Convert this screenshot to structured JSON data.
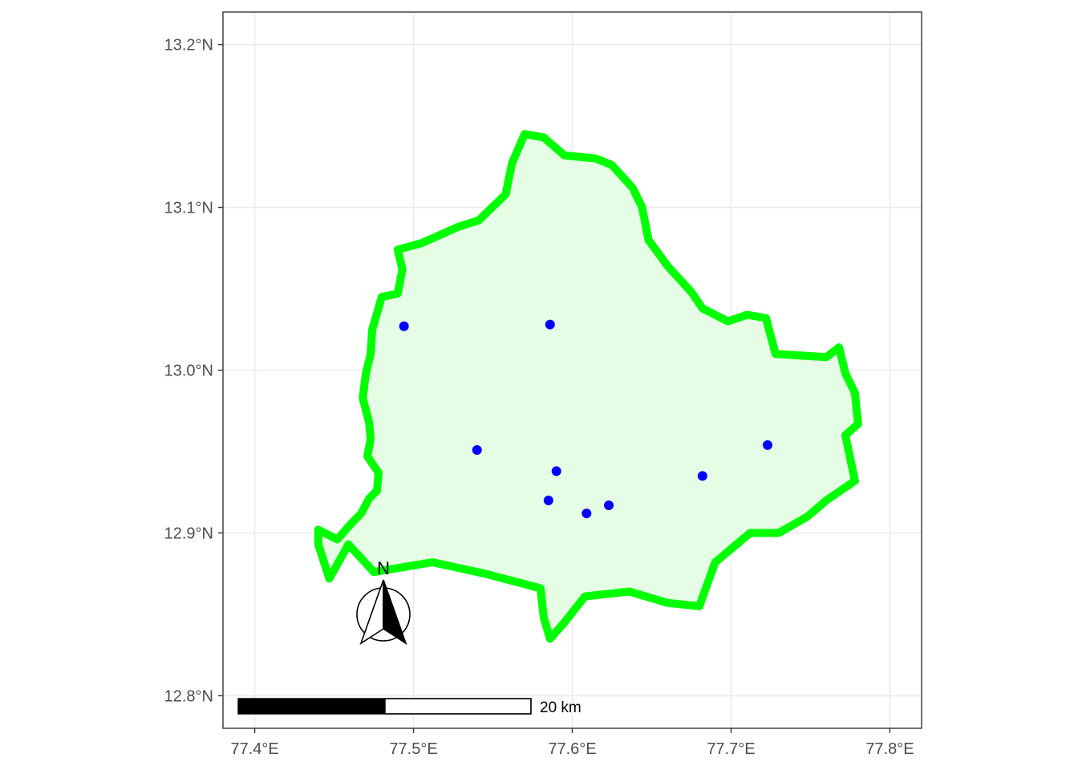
{
  "map": {
    "x_axis": {
      "range": [
        77.38,
        77.82
      ],
      "ticks": [
        {
          "value": 77.4,
          "label": "77.4°E"
        },
        {
          "value": 77.5,
          "label": "77.5°E"
        },
        {
          "value": 77.6,
          "label": "77.6°E"
        },
        {
          "value": 77.7,
          "label": "77.7°E"
        },
        {
          "value": 77.8,
          "label": "77.8°E"
        }
      ]
    },
    "y_axis": {
      "range": [
        12.78,
        13.22
      ],
      "ticks": [
        {
          "value": 12.8,
          "label": "12.8°N"
        },
        {
          "value": 12.9,
          "label": "12.9°N"
        },
        {
          "value": 13.0,
          "label": "13.0°N"
        },
        {
          "value": 13.1,
          "label": "13.1°N"
        },
        {
          "value": 13.2,
          "label": "13.2°N"
        }
      ]
    },
    "boundary": {
      "stroke_color": "#00ff00",
      "fill_color": "#e5fde5",
      "coordinates": [
        [
          77.447,
          12.872
        ],
        [
          77.459,
          12.893
        ],
        [
          77.475,
          12.876
        ],
        [
          77.512,
          12.882
        ],
        [
          77.545,
          12.875
        ],
        [
          77.58,
          12.866
        ],
        [
          77.582,
          12.848
        ],
        [
          77.586,
          12.835
        ],
        [
          77.595,
          12.845
        ],
        [
          77.608,
          12.861
        ],
        [
          77.636,
          12.864
        ],
        [
          77.66,
          12.857
        ],
        [
          77.68,
          12.855
        ],
        [
          77.69,
          12.882
        ],
        [
          77.712,
          12.9
        ],
        [
          77.73,
          12.9
        ],
        [
          77.748,
          12.91
        ],
        [
          77.76,
          12.92
        ],
        [
          77.778,
          12.932
        ],
        [
          77.772,
          12.96
        ],
        [
          77.78,
          12.967
        ],
        [
          77.778,
          12.986
        ],
        [
          77.772,
          12.998
        ],
        [
          77.768,
          13.014
        ],
        [
          77.76,
          13.008
        ],
        [
          77.728,
          13.01
        ],
        [
          77.722,
          13.032
        ],
        [
          77.71,
          13.034
        ],
        [
          77.698,
          13.03
        ],
        [
          77.682,
          13.038
        ],
        [
          77.675,
          13.048
        ],
        [
          77.66,
          13.064
        ],
        [
          77.648,
          13.08
        ],
        [
          77.644,
          13.1
        ],
        [
          77.638,
          13.112
        ],
        [
          77.625,
          13.126
        ],
        [
          77.615,
          13.13
        ],
        [
          77.595,
          13.132
        ],
        [
          77.582,
          13.143
        ],
        [
          77.57,
          13.145
        ],
        [
          77.562,
          13.127
        ],
        [
          77.558,
          13.108
        ],
        [
          77.541,
          13.092
        ],
        [
          77.528,
          13.088
        ],
        [
          77.512,
          13.081
        ],
        [
          77.505,
          13.078
        ],
        [
          77.49,
          13.074
        ],
        [
          77.493,
          13.062
        ],
        [
          77.49,
          13.047
        ],
        [
          77.48,
          13.045
        ],
        [
          77.474,
          13.025
        ],
        [
          77.473,
          13.01
        ],
        [
          77.47,
          12.998
        ],
        [
          77.468,
          12.983
        ],
        [
          77.472,
          12.968
        ],
        [
          77.473,
          12.958
        ],
        [
          77.471,
          12.947
        ],
        [
          77.478,
          12.937
        ],
        [
          77.477,
          12.926
        ],
        [
          77.472,
          12.921
        ],
        [
          77.467,
          12.912
        ],
        [
          77.46,
          12.905
        ],
        [
          77.452,
          12.896
        ],
        [
          77.44,
          12.902
        ],
        [
          77.44,
          12.893
        ],
        [
          77.447,
          12.872
        ]
      ]
    },
    "points": {
      "color": "#0000ff",
      "coordinates": [
        [
          77.494,
          13.027
        ],
        [
          77.586,
          13.028
        ],
        [
          77.54,
          12.951
        ],
        [
          77.59,
          12.938
        ],
        [
          77.585,
          12.92
        ],
        [
          77.609,
          12.912
        ],
        [
          77.623,
          12.917
        ],
        [
          77.682,
          12.935
        ],
        [
          77.723,
          12.954
        ]
      ]
    },
    "scale_bar": {
      "label": "20 km",
      "length_km": 20
    },
    "north_arrow": {
      "letter": "N",
      "icon": "north-arrow-icon"
    },
    "grid": true,
    "panel_border_color": "#333333",
    "grid_color": "#ebebeb"
  }
}
